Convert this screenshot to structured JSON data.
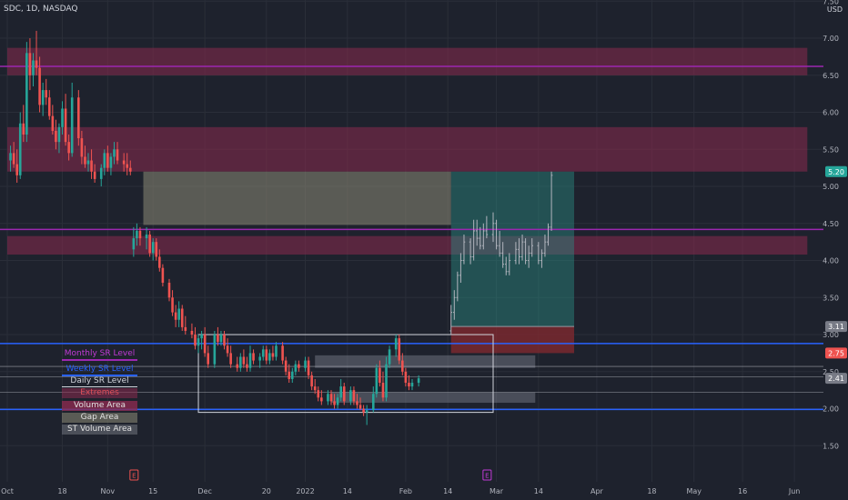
{
  "symbol_line": "SDC, 1D, NASDAQ",
  "currency": "USD",
  "colors": {
    "background": "#1e222d",
    "up": "#26a69a",
    "down": "#ef5350",
    "gray_candle": "#b2b5be",
    "monthly": "#9c27b0",
    "weekly": "#2962ff",
    "daily": "#d1d4dc",
    "zone": "#8a2a4f",
    "long_profit": "#2a8c82",
    "long_loss": "#8b2a2f"
  },
  "legend": [
    {
      "label": "Monthly SR Level",
      "color": "#c13ad6",
      "style": "monthly"
    },
    {
      "label": "Weekly SR Level",
      "color": "#2962ff",
      "style": "weekly"
    },
    {
      "label": "Daily SR Level",
      "color": "#d1d4dc",
      "style": "daily"
    },
    {
      "label": "Extremes",
      "color": "#e0505a",
      "style": "extremes"
    },
    {
      "label": "Volume Area",
      "color": "#e0e0e0",
      "style": "volume"
    },
    {
      "label": "Gap Area",
      "color": "#e0e0e0",
      "style": "gap"
    },
    {
      "label": "ST Volume Area",
      "color": "#e0e0e0",
      "style": "st"
    }
  ],
  "chart_data": {
    "type": "candlestick",
    "x_ticks": [
      {
        "label": "Oct",
        "day": 0
      },
      {
        "label": "18",
        "day": 17
      },
      {
        "label": "Nov",
        "day": 31
      },
      {
        "label": "15",
        "day": 45
      },
      {
        "label": "Dec",
        "day": 61
      },
      {
        "label": "20",
        "day": 80
      },
      {
        "label": "2022",
        "day": 92
      },
      {
        "label": "14",
        "day": 105
      },
      {
        "label": "Feb",
        "day": 123
      },
      {
        "label": "14",
        "day": 136
      },
      {
        "label": "Mar",
        "day": 151
      },
      {
        "label": "14",
        "day": 164
      },
      {
        "label": "Apr",
        "day": 182
      },
      {
        "label": "18",
        "day": 199
      },
      {
        "label": "May",
        "day": 212
      },
      {
        "label": "16",
        "day": 227
      },
      {
        "label": "Jun",
        "day": 243
      }
    ],
    "y_ticks": [
      1.5,
      2.0,
      2.5,
      3.0,
      3.5,
      4.0,
      4.5,
      5.0,
      5.5,
      6.0,
      6.5,
      7.0,
      7.5
    ],
    "ylim": [
      1.3,
      7.9
    ],
    "xlim": [
      0,
      247
    ],
    "price_labels": [
      {
        "value": 5.2,
        "text": "5.20",
        "color": "#26a69a"
      },
      {
        "value": 3.11,
        "text": "3.11",
        "color": "#787b86"
      },
      {
        "value": 2.75,
        "text": "2.75",
        "color": "#ef5350"
      },
      {
        "value": 2.41,
        "text": "2.41",
        "color": "#787b86"
      }
    ],
    "zones": [
      {
        "y1": 6.5,
        "y2": 6.87,
        "x1": 0,
        "x2": 247,
        "kind": "extreme"
      },
      {
        "y1": 5.2,
        "y2": 5.8,
        "x1": 0,
        "x2": 247,
        "kind": "extreme"
      },
      {
        "y1": 4.08,
        "y2": 4.33,
        "x1": 0,
        "x2": 247,
        "kind": "extreme"
      }
    ],
    "areas": [
      {
        "y1": 4.48,
        "y2": 5.2,
        "x1": 42,
        "x2": 137,
        "kind": "gap"
      },
      {
        "y1": 2.55,
        "y2": 2.72,
        "x1": 95,
        "x2": 163,
        "kind": "volume"
      },
      {
        "y1": 2.08,
        "y2": 2.22,
        "x1": 100,
        "x2": 163,
        "kind": "volume"
      }
    ],
    "boxes": [
      {
        "y1": 1.95,
        "y2": 3.0,
        "x1": 59,
        "x2": 150
      }
    ],
    "levels": [
      {
        "value": 6.62,
        "kind": "monthly"
      },
      {
        "value": 4.42,
        "kind": "monthly"
      },
      {
        "value": 2.88,
        "kind": "weekly"
      },
      {
        "value": 1.99,
        "kind": "weekly"
      },
      {
        "value": 2.57,
        "kind": "daily"
      },
      {
        "value": 2.43,
        "kind": "daily"
      },
      {
        "value": 2.22,
        "kind": "daily"
      }
    ],
    "position": {
      "entry": 3.11,
      "target": 5.2,
      "stop": 2.75,
      "x1": 137,
      "x2": 175
    },
    "earnings_markers": [
      {
        "day": 39,
        "label": "E"
      },
      {
        "day": 148,
        "label": "E"
      }
    ],
    "candles": [
      [
        1,
        5.35,
        5.55,
        5.2,
        5.45
      ],
      [
        2,
        5.45,
        5.6,
        5.25,
        5.3
      ],
      [
        3,
        5.3,
        5.5,
        5.05,
        5.15
      ],
      [
        4,
        5.15,
        6.0,
        5.1,
        5.85
      ],
      [
        5,
        5.85,
        6.1,
        5.6,
        5.7
      ],
      [
        6,
        5.7,
        6.95,
        5.6,
        6.8
      ],
      [
        7,
        6.8,
        7.0,
        6.3,
        6.5
      ],
      [
        8,
        6.5,
        6.8,
        6.35,
        6.7
      ],
      [
        9,
        6.7,
        7.1,
        6.5,
        6.6
      ],
      [
        10,
        6.6,
        6.75,
        6.0,
        6.1
      ],
      [
        11,
        6.1,
        6.4,
        5.95,
        6.3
      ],
      [
        12,
        6.3,
        6.45,
        6.1,
        6.2
      ],
      [
        13,
        6.2,
        6.3,
        5.9,
        5.95
      ],
      [
        14,
        5.95,
        6.1,
        5.7,
        5.75
      ],
      [
        15,
        5.75,
        5.9,
        5.5,
        5.6
      ],
      [
        16,
        5.6,
        5.85,
        5.45,
        5.8
      ],
      [
        17,
        5.8,
        6.15,
        5.7,
        6.05
      ],
      [
        18,
        6.05,
        6.25,
        5.55,
        5.6
      ],
      [
        19,
        5.6,
        5.7,
        5.35,
        5.45
      ],
      [
        20,
        5.45,
        6.4,
        5.4,
        6.2
      ],
      [
        22,
        6.2,
        6.3,
        5.55,
        5.65
      ],
      [
        23,
        5.65,
        5.75,
        5.3,
        5.4
      ],
      [
        24,
        5.4,
        5.55,
        5.25,
        5.3
      ],
      [
        25,
        5.3,
        5.45,
        5.2,
        5.35
      ],
      [
        26,
        5.35,
        5.5,
        5.1,
        5.2
      ],
      [
        27,
        5.2,
        5.3,
        5.05,
        5.1
      ],
      [
        29,
        5.1,
        5.3,
        5.0,
        5.25
      ],
      [
        30,
        5.25,
        5.5,
        5.15,
        5.45
      ],
      [
        31,
        5.45,
        5.55,
        5.2,
        5.25
      ],
      [
        32,
        5.25,
        5.45,
        5.15,
        5.4
      ],
      [
        33,
        5.4,
        5.6,
        5.3,
        5.5
      ],
      [
        34,
        5.5,
        5.6,
        5.3,
        5.35
      ],
      [
        36,
        5.35,
        5.45,
        5.2,
        5.3
      ],
      [
        37,
        5.3,
        5.45,
        5.15,
        5.25
      ],
      [
        38,
        5.25,
        5.35,
        5.15,
        5.2
      ],
      [
        39,
        4.15,
        4.45,
        4.05,
        4.3
      ],
      [
        40,
        4.3,
        4.5,
        4.2,
        4.4
      ],
      [
        41,
        4.4,
        4.45,
        4.2,
        4.3
      ],
      [
        43,
        4.3,
        4.45,
        4.15,
        4.35
      ],
      [
        44,
        4.35,
        4.4,
        4.05,
        4.1
      ],
      [
        45,
        4.1,
        4.3,
        4.0,
        4.25
      ],
      [
        46,
        4.25,
        4.3,
        4.0,
        4.05
      ],
      [
        47,
        4.05,
        4.15,
        3.85,
        3.9
      ],
      [
        48,
        3.9,
        3.95,
        3.65,
        3.7
      ],
      [
        50,
        3.7,
        3.75,
        3.45,
        3.5
      ],
      [
        51,
        3.5,
        3.6,
        3.25,
        3.3
      ],
      [
        52,
        3.3,
        3.4,
        3.1,
        3.2
      ],
      [
        53,
        3.2,
        3.45,
        3.1,
        3.35
      ],
      [
        54,
        3.35,
        3.4,
        3.05,
        3.1
      ],
      [
        55,
        3.1,
        3.25,
        3.0,
        3.05
      ],
      [
        57,
        3.05,
        3.15,
        2.95,
        3.0
      ],
      [
        58,
        3.0,
        3.1,
        2.8,
        2.85
      ],
      [
        59,
        2.85,
        3.0,
        2.75,
        2.95
      ],
      [
        60,
        2.95,
        3.05,
        2.8,
        3.0
      ],
      [
        61,
        3.0,
        3.1,
        2.7,
        2.75
      ],
      [
        62,
        2.75,
        2.85,
        2.55,
        2.6
      ],
      [
        64,
        2.6,
        3.05,
        2.55,
        3.0
      ],
      [
        65,
        3.0,
        3.1,
        2.85,
        2.9
      ],
      [
        66,
        2.9,
        3.05,
        2.85,
        3.0
      ],
      [
        67,
        3.0,
        3.05,
        2.8,
        2.85
      ],
      [
        68,
        2.85,
        2.95,
        2.7,
        2.75
      ],
      [
        69,
        2.75,
        2.85,
        2.55,
        2.6
      ],
      [
        71,
        2.6,
        2.7,
        2.5,
        2.55
      ],
      [
        72,
        2.55,
        2.75,
        2.5,
        2.7
      ],
      [
        73,
        2.7,
        2.8,
        2.55,
        2.6
      ],
      [
        74,
        2.6,
        2.7,
        2.5,
        2.55
      ],
      [
        75,
        2.55,
        2.85,
        2.5,
        2.75
      ],
      [
        76,
        2.75,
        2.8,
        2.6,
        2.65
      ],
      [
        78,
        2.65,
        2.75,
        2.55,
        2.7
      ],
      [
        79,
        2.7,
        2.85,
        2.65,
        2.8
      ],
      [
        80,
        2.8,
        2.85,
        2.6,
        2.65
      ],
      [
        81,
        2.65,
        2.8,
        2.6,
        2.75
      ],
      [
        82,
        2.75,
        2.85,
        2.65,
        2.7
      ],
      [
        83,
        2.7,
        2.9,
        2.65,
        2.85
      ],
      [
        85,
        2.85,
        2.9,
        2.6,
        2.65
      ],
      [
        86,
        2.65,
        2.7,
        2.45,
        2.5
      ],
      [
        87,
        2.5,
        2.6,
        2.35,
        2.4
      ],
      [
        88,
        2.4,
        2.55,
        2.35,
        2.5
      ],
      [
        89,
        2.5,
        2.65,
        2.45,
        2.6
      ],
      [
        90,
        2.6,
        2.65,
        2.5,
        2.55
      ],
      [
        92,
        2.55,
        2.7,
        2.5,
        2.65
      ],
      [
        93,
        2.65,
        2.7,
        2.4,
        2.45
      ],
      [
        94,
        2.45,
        2.5,
        2.25,
        2.3
      ],
      [
        95,
        2.3,
        2.4,
        2.2,
        2.25
      ],
      [
        96,
        2.25,
        2.3,
        2.1,
        2.15
      ],
      [
        97,
        2.15,
        2.25,
        2.05,
        2.1
      ],
      [
        99,
        2.1,
        2.25,
        2.05,
        2.2
      ],
      [
        100,
        2.2,
        2.25,
        2.05,
        2.1
      ],
      [
        101,
        2.1,
        2.2,
        2.0,
        2.05
      ],
      [
        102,
        2.05,
        2.2,
        2.0,
        2.15
      ],
      [
        103,
        2.15,
        2.4,
        2.1,
        2.3
      ],
      [
        104,
        2.3,
        2.35,
        2.05,
        2.1
      ],
      [
        106,
        2.1,
        2.3,
        2.05,
        2.25
      ],
      [
        107,
        2.25,
        2.3,
        2.05,
        2.1
      ],
      [
        108,
        2.1,
        2.2,
        2.0,
        2.05
      ],
      [
        109,
        2.05,
        2.15,
        1.98,
        2.0
      ],
      [
        110,
        2.0,
        2.05,
        1.9,
        1.95
      ],
      [
        111,
        1.95,
        2.05,
        1.78,
        1.98
      ],
      [
        113,
        1.98,
        2.3,
        1.95,
        2.2
      ],
      [
        114,
        2.2,
        2.6,
        2.15,
        2.55
      ],
      [
        115,
        2.55,
        2.65,
        2.3,
        2.35
      ],
      [
        116,
        2.35,
        2.5,
        2.1,
        2.15
      ],
      [
        117,
        2.15,
        2.7,
        2.1,
        2.6
      ],
      [
        118,
        2.6,
        2.85,
        2.55,
        2.8
      ],
      [
        120,
        2.8,
        3.0,
        2.7,
        2.95
      ],
      [
        121,
        2.95,
        3.0,
        2.6,
        2.65
      ],
      [
        122,
        2.65,
        2.75,
        2.45,
        2.5
      ],
      [
        123,
        2.5,
        2.55,
        2.3,
        2.35
      ],
      [
        124,
        2.35,
        2.45,
        2.25,
        2.3
      ],
      [
        125,
        2.3,
        2.4,
        2.25,
        2.35
      ],
      [
        127,
        2.35,
        2.45,
        2.3,
        2.41
      ],
      [
        137,
        3.05,
        3.4,
        3.0,
        3.3,
        "g"
      ],
      [
        138,
        3.3,
        3.6,
        3.2,
        3.5,
        "g"
      ],
      [
        139,
        3.5,
        3.85,
        3.45,
        3.8,
        "g"
      ],
      [
        140,
        3.8,
        4.1,
        3.7,
        4.0,
        "g"
      ],
      [
        141,
        4.0,
        4.35,
        3.95,
        4.25,
        "g"
      ],
      [
        143,
        4.25,
        4.3,
        3.95,
        4.05,
        "g"
      ],
      [
        144,
        4.05,
        4.55,
        4.0,
        4.4,
        "g"
      ],
      [
        145,
        4.4,
        4.55,
        4.2,
        4.3,
        "g"
      ],
      [
        146,
        4.3,
        4.45,
        4.15,
        4.2,
        "g"
      ],
      [
        147,
        4.2,
        4.5,
        4.15,
        4.4,
        "g"
      ],
      [
        148,
        4.4,
        4.6,
        4.3,
        4.35,
        "g"
      ],
      [
        150,
        4.35,
        4.65,
        4.25,
        4.5,
        "g"
      ],
      [
        151,
        4.5,
        4.55,
        4.15,
        4.2,
        "g"
      ],
      [
        152,
        4.2,
        4.4,
        4.05,
        4.1,
        "g"
      ],
      [
        153,
        4.1,
        4.25,
        3.9,
        3.95,
        "g"
      ],
      [
        154,
        3.95,
        4.05,
        3.8,
        3.85,
        "g"
      ],
      [
        155,
        3.85,
        4.1,
        3.8,
        4.0,
        "g"
      ],
      [
        157,
        4.0,
        4.25,
        3.95,
        4.15,
        "g"
      ],
      [
        158,
        4.15,
        4.3,
        3.95,
        4.05,
        "g"
      ],
      [
        159,
        4.05,
        4.35,
        4.0,
        4.25,
        "g"
      ],
      [
        160,
        4.25,
        4.3,
        3.95,
        4.0,
        "g"
      ],
      [
        161,
        4.0,
        4.2,
        3.9,
        4.1,
        "g"
      ],
      [
        162,
        4.1,
        4.3,
        4.05,
        4.2,
        "g"
      ],
      [
        164,
        4.2,
        4.25,
        3.95,
        4.0,
        "g"
      ],
      [
        165,
        4.0,
        4.15,
        3.9,
        4.1,
        "g"
      ],
      [
        166,
        4.1,
        4.35,
        4.05,
        4.25,
        "g"
      ],
      [
        167,
        4.25,
        4.5,
        4.2,
        4.45,
        "g"
      ],
      [
        168,
        4.45,
        5.2,
        4.4,
        5.15,
        "g"
      ]
    ]
  }
}
